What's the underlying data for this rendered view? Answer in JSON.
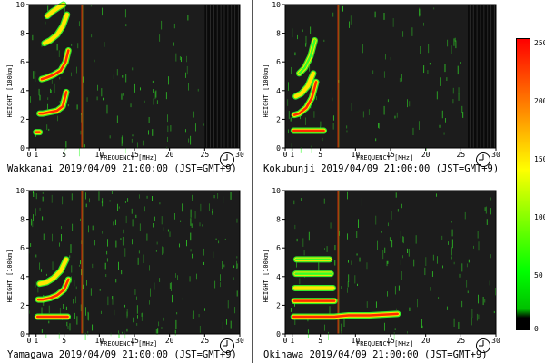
{
  "colors": {
    "plot_bg": "#1c1c1c",
    "trace_green": "#35ff2a",
    "trace_yellow": "#ffe600",
    "trace_red": "#ff2a00",
    "colorbar_stops": [
      "#ff0000",
      "#ff8c00",
      "#ffff00",
      "#00ff00",
      "#00c000",
      "#000000"
    ]
  },
  "colorbar": {
    "ticks": [
      "250",
      "200",
      "150",
      "100",
      "50",
      "0"
    ]
  },
  "chart_data": [
    {
      "type": "heatmap",
      "station": "Wakkanai",
      "caption": "Wakkanai 2019/04/09 21:00:00 (JST=GMT+9)",
      "xlabel": "FREQUENCY [MHz]",
      "ylabel": "HEIGHT [100km]",
      "xlim": [
        0,
        30
      ],
      "ylim": [
        0,
        10
      ],
      "xticks": [
        "0",
        "1",
        "5",
        "10",
        "15",
        "20",
        "25",
        "30"
      ],
      "yticks": [
        "0",
        "2",
        "4",
        "6",
        "8",
        "10"
      ],
      "traces": [
        {
          "x": [
            1.0,
            1.5
          ],
          "y": [
            1.1,
            1.1
          ],
          "intensity": 250
        },
        {
          "x": [
            1.5,
            2.0,
            3.0,
            4.0,
            4.8,
            5.3
          ],
          "y": [
            2.4,
            2.4,
            2.5,
            2.6,
            2.9,
            3.9
          ],
          "intensity": 230
        },
        {
          "x": [
            1.8,
            2.5,
            3.5,
            4.5,
            5.2,
            5.6
          ],
          "y": [
            4.8,
            4.9,
            5.1,
            5.4,
            6.0,
            6.8
          ],
          "intensity": 200
        },
        {
          "x": [
            2.2,
            3.0,
            4.0,
            4.8,
            5.4
          ],
          "y": [
            7.3,
            7.5,
            7.9,
            8.5,
            9.3
          ],
          "intensity": 180
        },
        {
          "x": [
            2.6,
            3.3,
            4.2,
            4.9
          ],
          "y": [
            9.2,
            9.5,
            9.8,
            10.0
          ],
          "intensity": 170
        }
      ],
      "noise_density": 0.35,
      "vertical_lines": [
        7.5
      ],
      "dark_band": [
        25,
        30
      ]
    },
    {
      "type": "heatmap",
      "station": "Kokubunji",
      "caption": "Kokubunji 2019/04/09 21:00:00 (JST=GMT+9)",
      "xlabel": "FREQUENCY [MHz]",
      "ylabel": "HEIGHT [100km]",
      "xlim": [
        0,
        30
      ],
      "ylim": [
        0,
        10
      ],
      "xticks": [
        "0",
        "1",
        "5",
        "10",
        "15",
        "20",
        "25",
        "30"
      ],
      "yticks": [
        "0",
        "2",
        "4",
        "6",
        "8",
        "10"
      ],
      "traces": [
        {
          "x": [
            1.2,
            2.0,
            3.0,
            4.0,
            5.5
          ],
          "y": [
            1.2,
            1.2,
            1.2,
            1.2,
            1.2
          ],
          "intensity": 220
        },
        {
          "x": [
            1.3,
            2.0,
            3.0,
            3.8,
            4.4
          ],
          "y": [
            2.3,
            2.4,
            2.8,
            3.5,
            4.6
          ],
          "intensity": 200
        },
        {
          "x": [
            1.5,
            2.3,
            3.2,
            4.0
          ],
          "y": [
            3.6,
            3.8,
            4.3,
            5.2
          ],
          "intensity": 150
        },
        {
          "x": [
            2.0,
            2.8,
            3.6,
            4.2
          ],
          "y": [
            5.2,
            5.6,
            6.4,
            7.5
          ],
          "intensity": 120
        }
      ],
      "noise_density": 0.3,
      "vertical_lines": [
        7.5
      ],
      "dark_band": [
        26,
        30
      ]
    },
    {
      "type": "heatmap",
      "station": "Yamagawa",
      "caption": "Yamagawa 2019/04/09 21:00:00 (JST=GMT+9)",
      "xlabel": "FREQUENCY [MHz]",
      "ylabel": "HEIGHT [100km]",
      "xlim": [
        0,
        30
      ],
      "ylim": [
        0,
        10
      ],
      "xticks": [
        "0",
        "1",
        "5",
        "10",
        "15",
        "20",
        "25",
        "30"
      ],
      "yticks": [
        "0",
        "2",
        "4",
        "6",
        "8",
        "10"
      ],
      "traces": [
        {
          "x": [
            1.2,
            2.0,
            3.0,
            4.0,
            5.5
          ],
          "y": [
            1.2,
            1.2,
            1.2,
            1.2,
            1.2
          ],
          "intensity": 240
        },
        {
          "x": [
            1.3,
            2.0,
            3.0,
            4.0,
            5.0,
            5.6
          ],
          "y": [
            2.4,
            2.4,
            2.5,
            2.7,
            3.1,
            3.8
          ],
          "intensity": 220
        },
        {
          "x": [
            1.5,
            2.5,
            3.5,
            4.5,
            5.3
          ],
          "y": [
            3.5,
            3.6,
            3.9,
            4.4,
            5.2
          ],
          "intensity": 180
        }
      ],
      "noise_density": 0.6,
      "vertical_lines": [
        7.5
      ],
      "dark_band": null
    },
    {
      "type": "heatmap",
      "station": "Okinawa",
      "caption": "Okinawa 2019/04/09 21:00:00 (JST=GMT+9)",
      "xlabel": "FREQUENCY [MHz]",
      "ylabel": "HEIGHT [100km]",
      "xlim": [
        0,
        30
      ],
      "ylim": [
        0,
        10
      ],
      "xticks": [
        "0",
        "1",
        "5",
        "10",
        "15",
        "20",
        "25",
        "30"
      ],
      "yticks": [
        "0",
        "2",
        "4",
        "6",
        "8",
        "10"
      ],
      "traces": [
        {
          "x": [
            1.2,
            3.0,
            5.0,
            7.0,
            9.0,
            12.0,
            16.0
          ],
          "y": [
            1.2,
            1.2,
            1.2,
            1.2,
            1.3,
            1.3,
            1.4
          ],
          "intensity": 240
        },
        {
          "x": [
            1.3,
            3.0,
            5.0,
            7.0
          ],
          "y": [
            2.3,
            2.3,
            2.3,
            2.3
          ],
          "intensity": 220
        },
        {
          "x": [
            1.4,
            3.0,
            5.0,
            6.8
          ],
          "y": [
            3.2,
            3.2,
            3.2,
            3.2
          ],
          "intensity": 160
        },
        {
          "x": [
            1.5,
            3.0,
            5.0,
            6.5
          ],
          "y": [
            4.2,
            4.2,
            4.2,
            4.2
          ],
          "intensity": 110
        },
        {
          "x": [
            1.6,
            3.0,
            5.0,
            6.3
          ],
          "y": [
            5.2,
            5.2,
            5.2,
            5.2
          ],
          "intensity": 90
        }
      ],
      "noise_density": 0.35,
      "vertical_lines": [
        7.5
      ],
      "dark_band": null
    }
  ]
}
